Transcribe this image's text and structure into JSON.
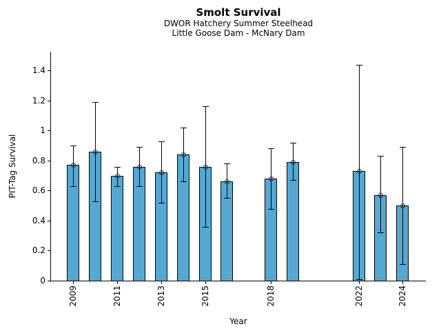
{
  "header": {
    "title": "Smolt Survival",
    "subtitle1": "DWOR Hatchery Summer Steelhead",
    "subtitle2": "Little Goose Dam - McNary Dam"
  },
  "chart_data": {
    "type": "bar",
    "title": "Smolt Survival",
    "subtitles": [
      "DWOR Hatchery Summer Steelhead",
      "Little Goose Dam - McNary Dam"
    ],
    "xlabel": "Year",
    "ylabel": "PIT-Tag Survival",
    "bar_color": "#56a8d3",
    "bar_edge_color": "#000000",
    "error_color": "#000000",
    "marker": "open-circle",
    "x": [
      2009,
      2010,
      2011,
      2012,
      2013,
      2014,
      2015,
      2016,
      2018,
      2019,
      2022,
      2023,
      2024
    ],
    "values": [
      0.77,
      0.86,
      0.7,
      0.76,
      0.72,
      0.84,
      0.76,
      0.66,
      0.68,
      0.79,
      0.73,
      0.57,
      0.5
    ],
    "error_low": [
      0.63,
      0.53,
      0.63,
      0.63,
      0.52,
      0.66,
      0.36,
      0.55,
      0.48,
      0.67,
      0.01,
      0.32,
      0.11
    ],
    "error_high": [
      0.9,
      1.19,
      0.76,
      0.89,
      0.93,
      1.02,
      1.16,
      0.78,
      0.88,
      0.92,
      1.44,
      0.83,
      0.89
    ],
    "x_ticks": [
      2009,
      2011,
      2013,
      2015,
      2018,
      2022,
      2024
    ],
    "y_ticks": [
      0,
      0.2,
      0.4,
      0.6,
      0.8,
      1,
      1.2,
      1.4
    ],
    "y_tick_labels": [
      "0",
      "0.2",
      "0.4",
      "0.6",
      "0.8",
      "1",
      "1.2",
      "1.4"
    ],
    "xlim": [
      2007.98,
      2025.06
    ],
    "ylim": [
      0,
      1.525
    ],
    "bar_width_years": 0.55,
    "grid": "off",
    "legend": "none"
  }
}
